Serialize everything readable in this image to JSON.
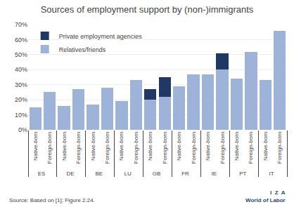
{
  "chart_data": {
    "type": "bar",
    "title": "Sources of employment support by (non-)immigrants",
    "categories": [
      [
        "ES",
        "Native-born"
      ],
      [
        "ES",
        "Foreign-born"
      ],
      [
        "DE",
        "Native-born"
      ],
      [
        "DE",
        "Foreign-born"
      ],
      [
        "BE",
        "Native-born"
      ],
      [
        "BE",
        "Foreign-born"
      ],
      [
        "LU",
        "Native-born"
      ],
      [
        "LU",
        "Foreign-born"
      ],
      [
        "GB",
        "Native-born"
      ],
      [
        "GB",
        "Foreign-born"
      ],
      [
        "FR",
        "Native-born"
      ],
      [
        "FR",
        "Foreign-born"
      ],
      [
        "IE",
        "Native-born"
      ],
      [
        "IE",
        "Foreign-born"
      ],
      [
        "PT",
        "Native-born"
      ],
      [
        "PT",
        "Foreign-born"
      ],
      [
        "IT",
        "Native-born"
      ],
      [
        "IT",
        "Foreign-born"
      ]
    ],
    "series": [
      {
        "name": "Relatives/friends",
        "color": "#9EB3D8",
        "values": [
          15,
          25,
          16,
          27,
          17,
          28,
          19,
          33,
          20,
          22,
          29,
          37,
          37,
          40,
          34,
          52,
          33,
          66
        ]
      },
      {
        "name": "Private employment agencies",
        "color": "#1F3864",
        "values": [
          0,
          0,
          0,
          0,
          0,
          0,
          0,
          0,
          7,
          13,
          0,
          0,
          0,
          11,
          0,
          0,
          0,
          0
        ]
      }
    ],
    "stacked": true,
    "ylim": [
      0,
      70
    ],
    "yticks": [
      {
        "value": 0,
        "label": "0%"
      },
      {
        "value": 10,
        "label": "10%"
      },
      {
        "value": 20,
        "label": "20%"
      },
      {
        "value": 30,
        "label": "30%"
      },
      {
        "value": 40,
        "label": "40%"
      },
      {
        "value": 50,
        "label": "50%"
      },
      {
        "value": 60,
        "label": "60%"
      },
      {
        "value": 70,
        "label": "70%"
      }
    ],
    "grid": true,
    "legend": "upper left",
    "annotations": [
      "Source: Based on [1]; Figure 2.24.",
      "I  Z  A",
      "World of Labor"
    ]
  }
}
